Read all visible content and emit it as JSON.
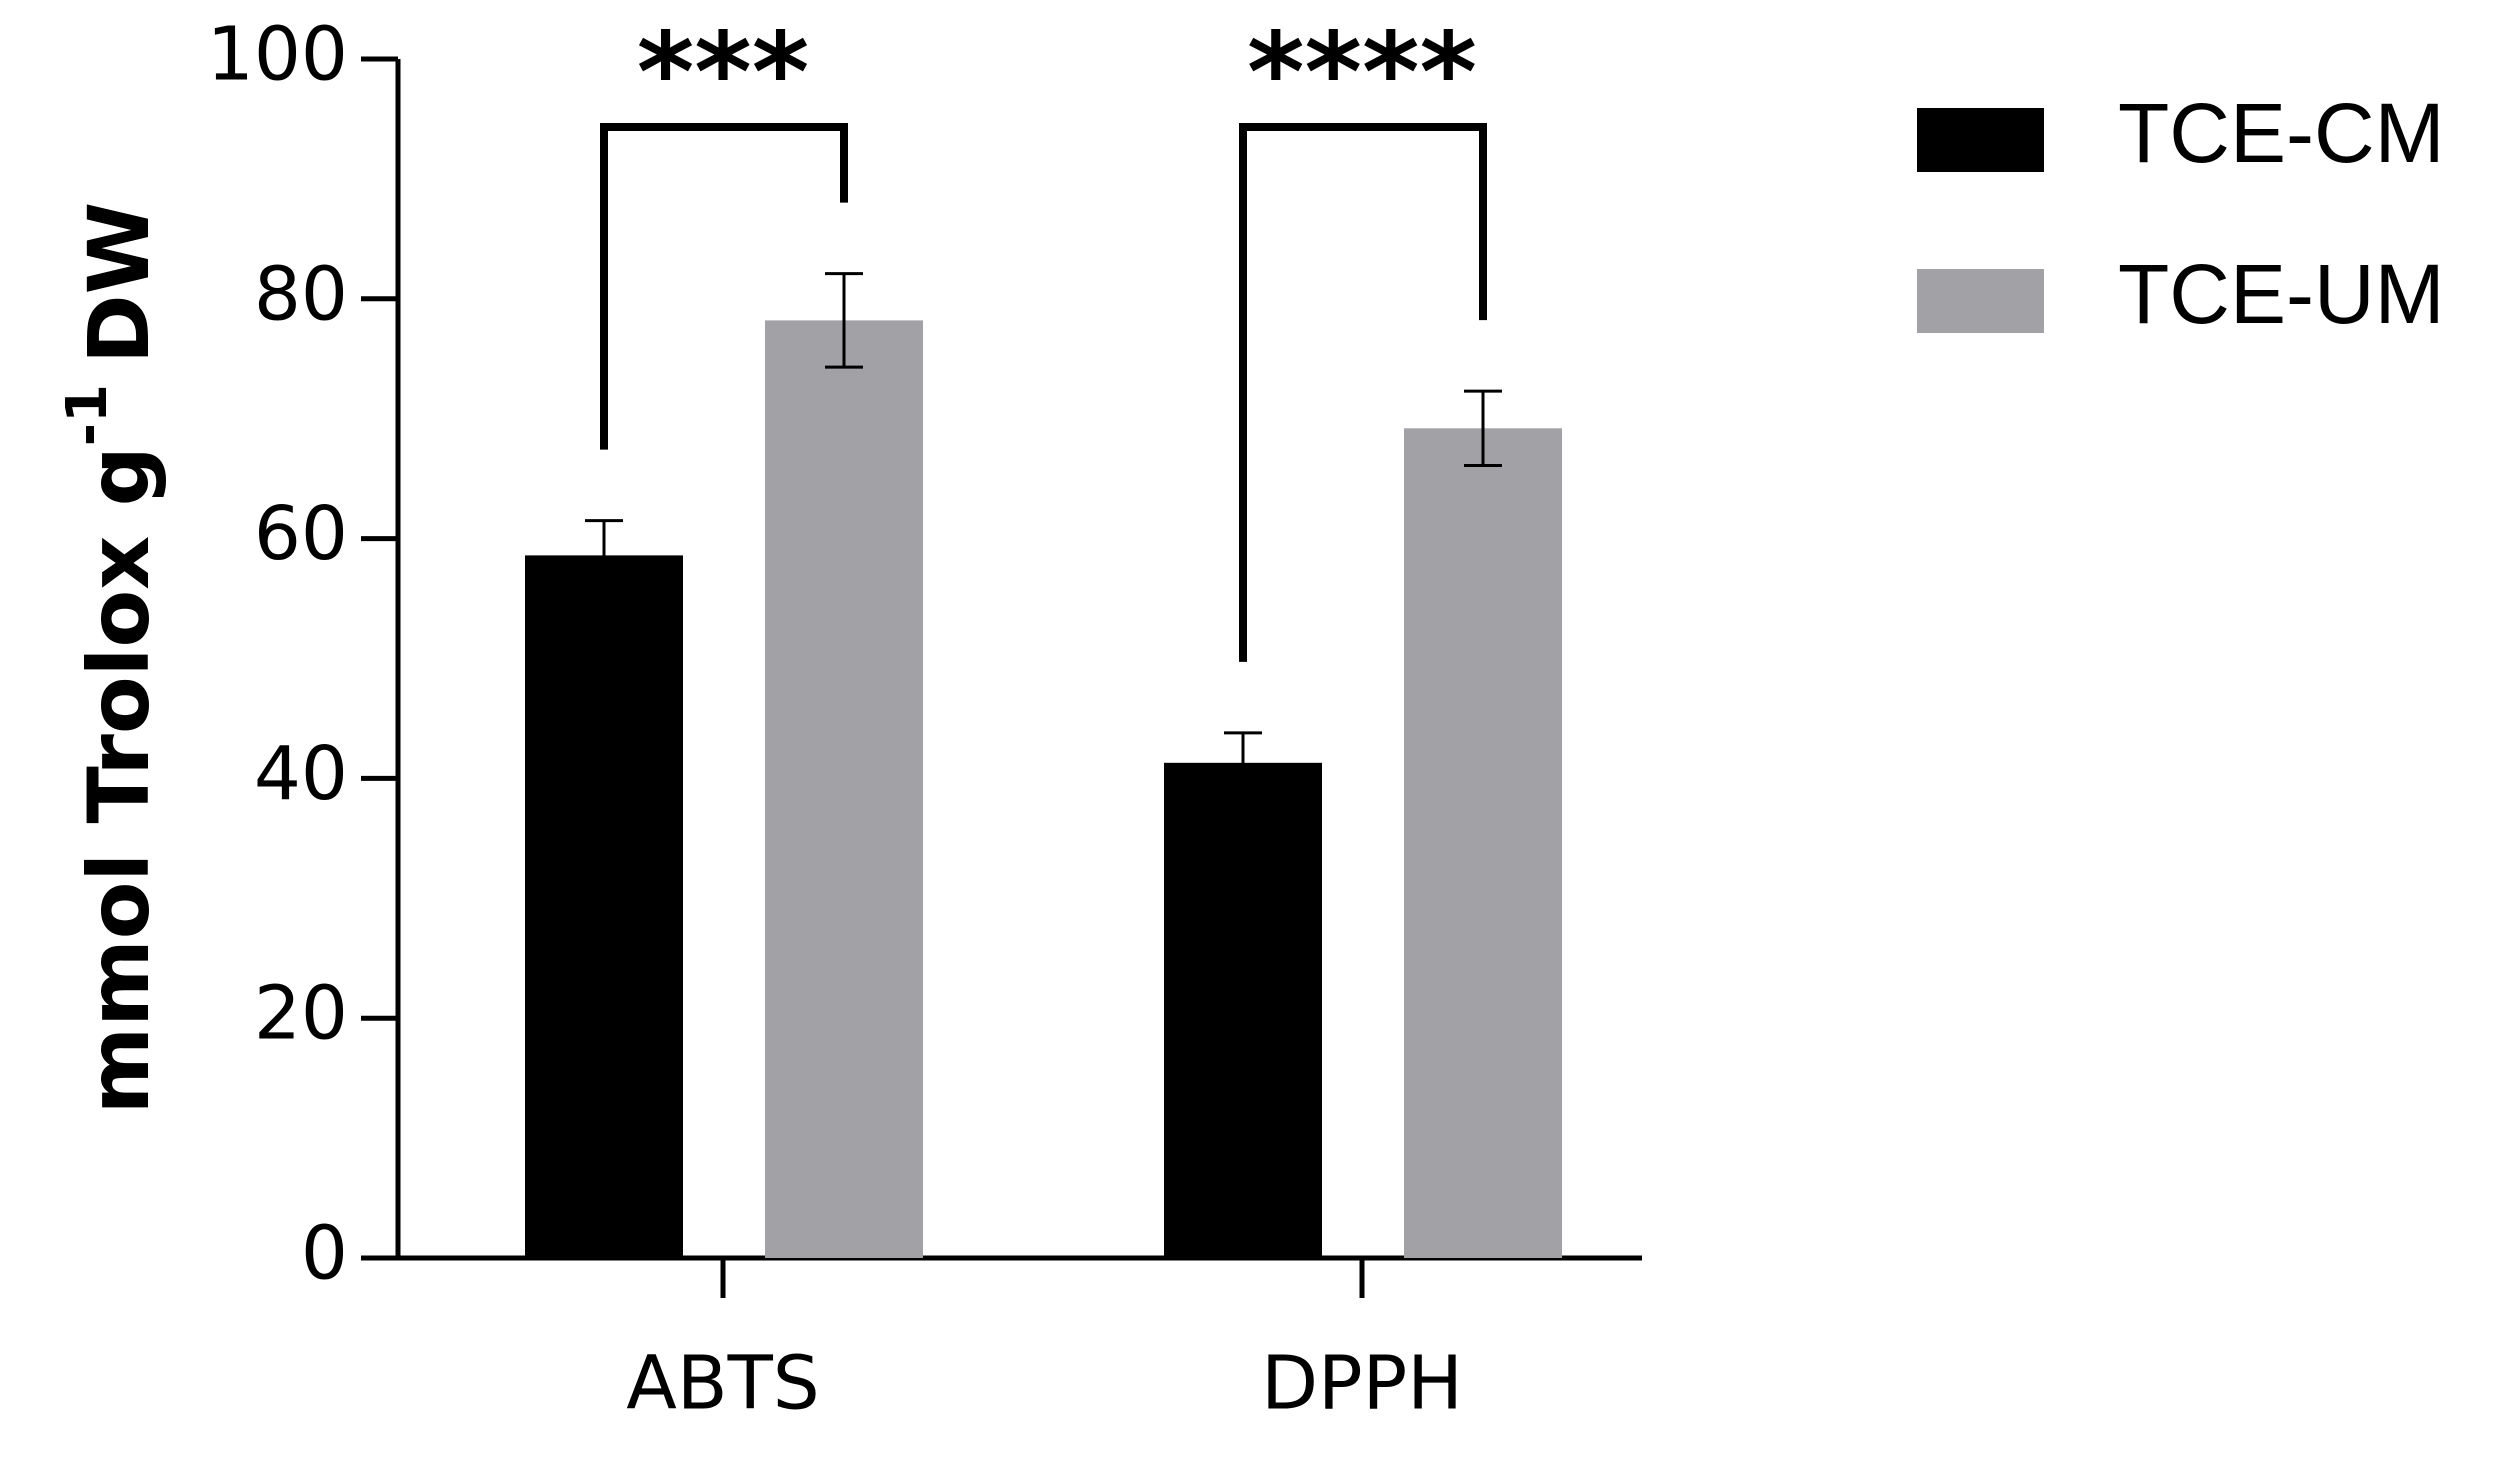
{
  "chart_data": {
    "type": "bar",
    "ylabel_parts": [
      "mmol Trolox g",
      "-1",
      "DW"
    ],
    "categories": [
      "ABTS",
      "DPPH"
    ],
    "series": [
      {
        "name": "TCE-CM",
        "color": "#000000",
        "values": [
          58.6,
          41.3
        ],
        "errors": [
          2.9,
          2.5
        ]
      },
      {
        "name": "TCE-UM",
        "color": "#a2a1a6",
        "values": [
          78.2,
          69.2
        ],
        "errors": [
          3.9,
          3.1
        ]
      }
    ],
    "annotations": [
      {
        "text": "***",
        "category": 0
      },
      {
        "text": "****",
        "category": 1
      }
    ],
    "ylim": [
      0,
      100
    ],
    "yticks": [
      0,
      20,
      40,
      60,
      80,
      100
    ],
    "legend": "right"
  }
}
